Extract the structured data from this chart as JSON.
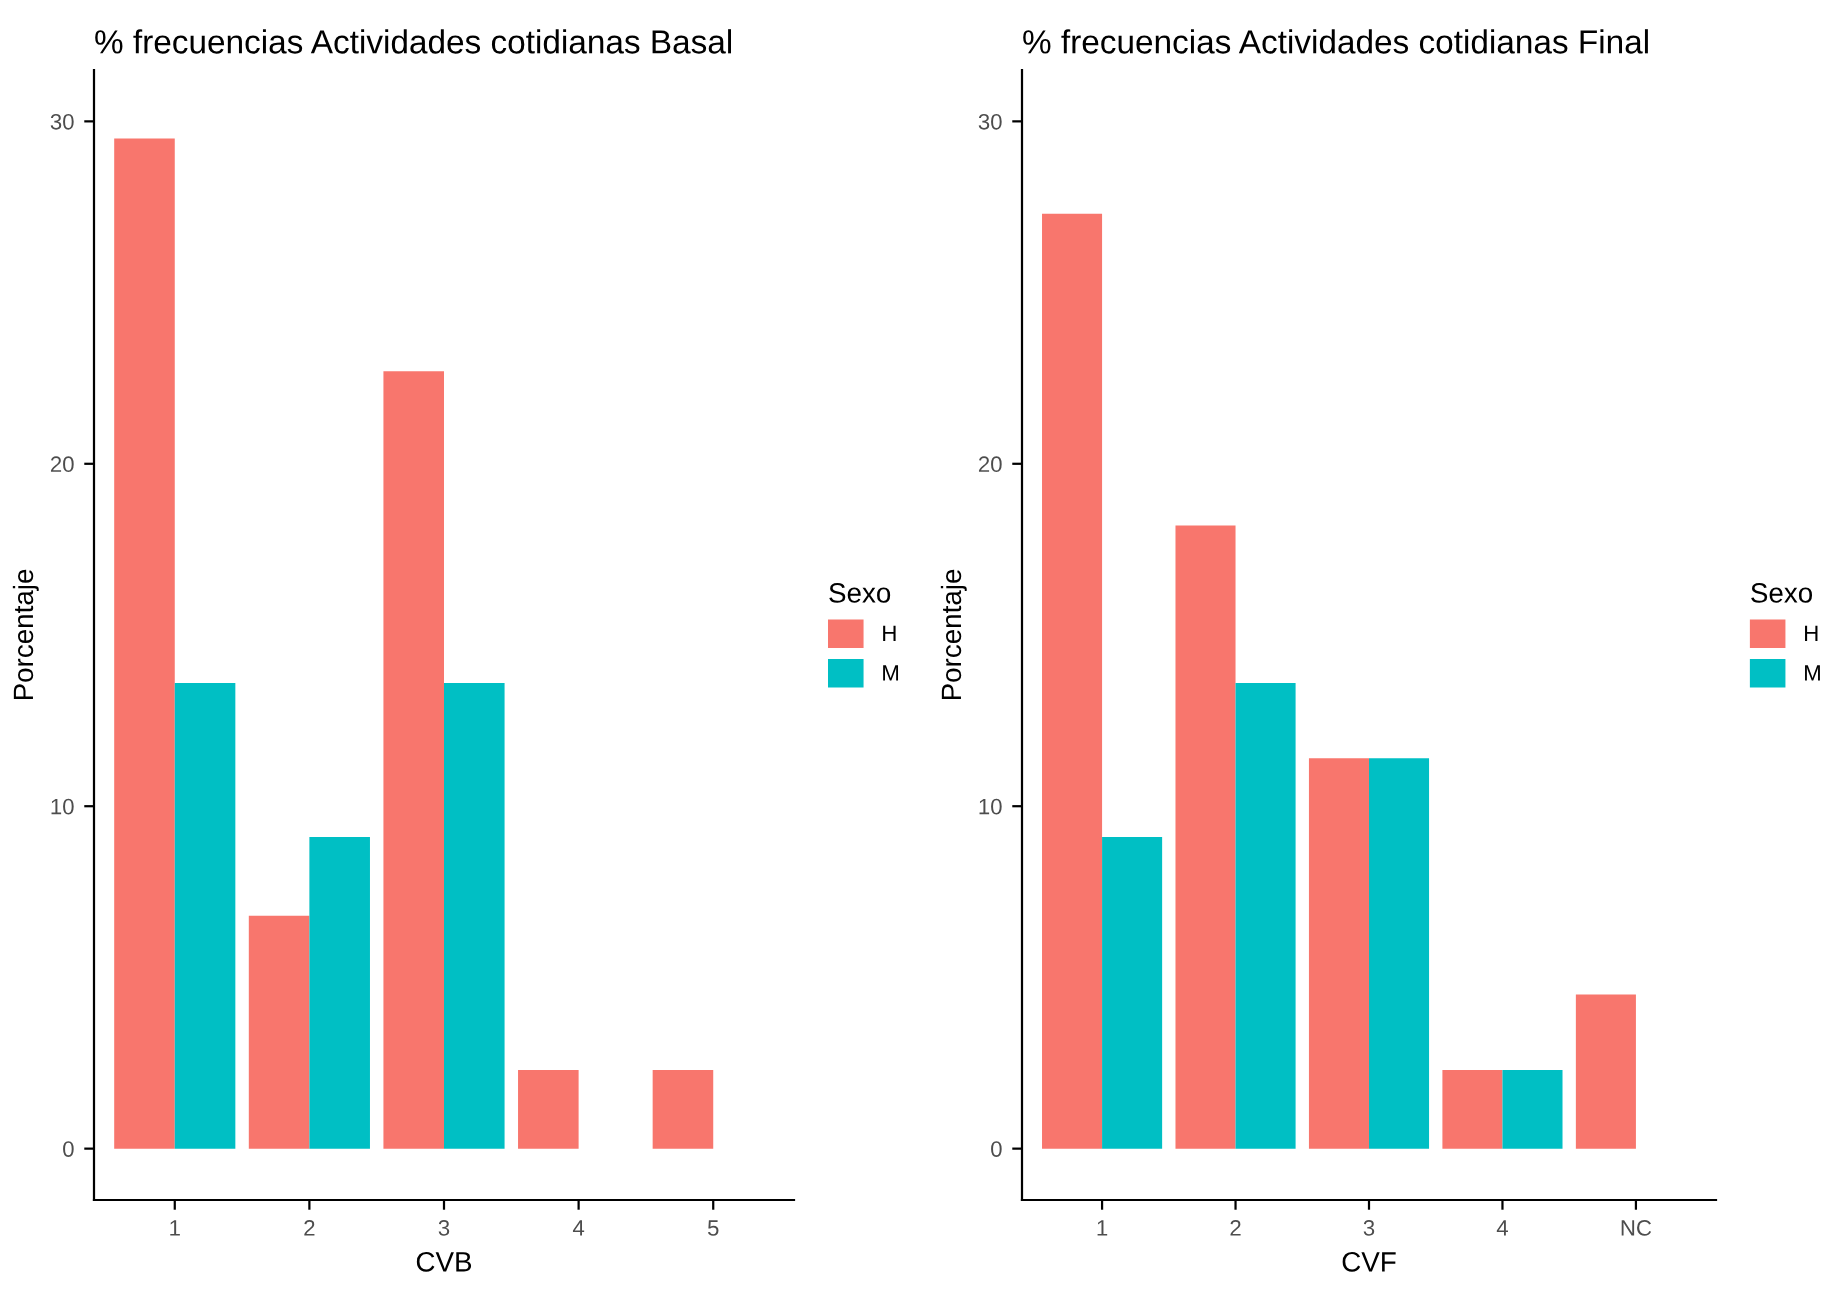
{
  "chart_data": [
    {
      "type": "bar",
      "title": "% frecuencias Actividades cotidianas Basal",
      "xlabel": "CVB",
      "ylabel": "Porcentaje",
      "legend_title": "Sexo",
      "legend": "right",
      "grid": false,
      "categories": [
        "1",
        "2",
        "3",
        "4",
        "5"
      ],
      "ylim": [
        -1.5,
        31.5
      ],
      "yticks": [
        0,
        10,
        20,
        30
      ],
      "series": [
        {
          "name": "H",
          "color": "#f8766d",
          "values": [
            29.5,
            6.8,
            22.7,
            2.3,
            2.3
          ]
        },
        {
          "name": "M",
          "color": "#00bfc4",
          "values": [
            13.6,
            9.1,
            13.6,
            0,
            0
          ]
        }
      ]
    },
    {
      "type": "bar",
      "title": "% frecuencias Actividades cotidianas Final",
      "xlabel": "CVF",
      "ylabel": "Porcentaje",
      "legend_title": "Sexo",
      "legend": "right",
      "grid": false,
      "categories": [
        "1",
        "2",
        "3",
        "4",
        "NC"
      ],
      "ylim": [
        -1.5,
        31.5
      ],
      "yticks": [
        0,
        10,
        20,
        30
      ],
      "series": [
        {
          "name": "H",
          "color": "#f8766d",
          "values": [
            27.3,
            18.2,
            11.4,
            2.3,
            4.5
          ]
        },
        {
          "name": "M",
          "color": "#00bfc4",
          "values": [
            9.1,
            13.6,
            11.4,
            2.3,
            0
          ]
        }
      ]
    }
  ]
}
